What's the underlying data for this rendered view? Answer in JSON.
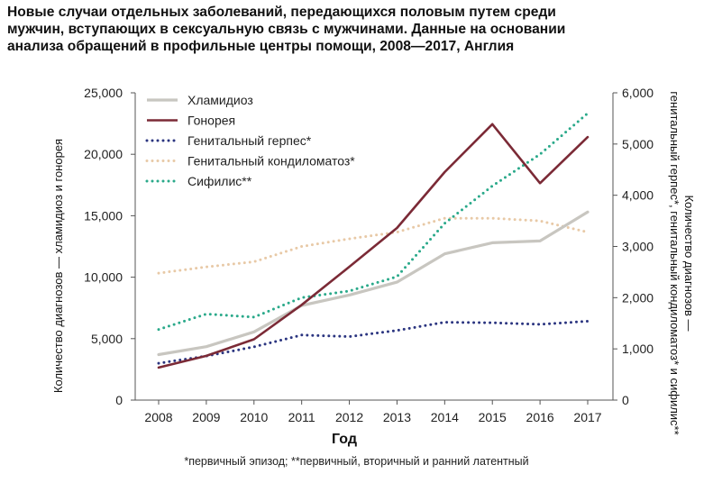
{
  "title_lines": [
    "Новые случаи отдельных заболеваний, передающихся половым путем среди",
    "мужчин, вступающих в сексуальную связь с мужчинами. Данные на основании",
    "анализа обращений в профильные центры помощи, 2008—2017, Англия"
  ],
  "footnote": "*первичный эпизод; **первичный, вторичный и ранний латентный",
  "chart_data": {
    "type": "line",
    "x": [
      2008,
      2009,
      2010,
      2011,
      2012,
      2013,
      2014,
      2015,
      2016,
      2017
    ],
    "x_tick_labels": [
      "2008",
      "2009",
      "2010",
      "2011",
      "2012",
      "2013",
      "2014",
      "2015",
      "2016",
      "2017"
    ],
    "xlabel": "Год",
    "ylabel_left": "Количество диагнозов — хламидиоз и гонорея",
    "ylabel_right": "Количество диагнозов — генитальный герпес*, генитальный кондиломатоз* и сифилис**",
    "ylim_left": [
      0,
      25000
    ],
    "ylim_right": [
      0,
      6000
    ],
    "yticks_left": [
      "0",
      "5,000",
      "10,000",
      "15,000",
      "20,000",
      "25,000"
    ],
    "yticks_right": [
      "0",
      "1,000",
      "2,000",
      "3,000",
      "4,000",
      "5,000",
      "6,000"
    ],
    "legend_position": "top-left",
    "series": [
      {
        "name": "Хламидиоз",
        "axis": "left",
        "style": "solid",
        "color": "#c8c6c0",
        "values": [
          3700,
          4350,
          5550,
          7700,
          8550,
          9600,
          11900,
          12800,
          12950,
          15300
        ]
      },
      {
        "name": "Гонорея",
        "axis": "left",
        "style": "solid",
        "color": "#7b2a36",
        "values": [
          2650,
          3600,
          4950,
          7750,
          10850,
          14000,
          18550,
          22450,
          17650,
          21400
        ]
      },
      {
        "name": "Генитальный герпес*",
        "axis": "right",
        "style": "dotted",
        "color": "#2b3580",
        "values": [
          720,
          860,
          1040,
          1270,
          1240,
          1360,
          1520,
          1510,
          1480,
          1540
        ]
      },
      {
        "name": "Генитальный кондиломатоз*",
        "axis": "right",
        "style": "dotted",
        "color": "#e8c9a6",
        "values": [
          2480,
          2600,
          2700,
          3000,
          3150,
          3280,
          3550,
          3550,
          3500,
          3280
        ]
      },
      {
        "name": "Сифилис**",
        "axis": "right",
        "style": "dotted",
        "color": "#2aa98a",
        "values": [
          1380,
          1680,
          1620,
          2000,
          2130,
          2410,
          3450,
          4180,
          4800,
          5600
        ]
      }
    ]
  }
}
